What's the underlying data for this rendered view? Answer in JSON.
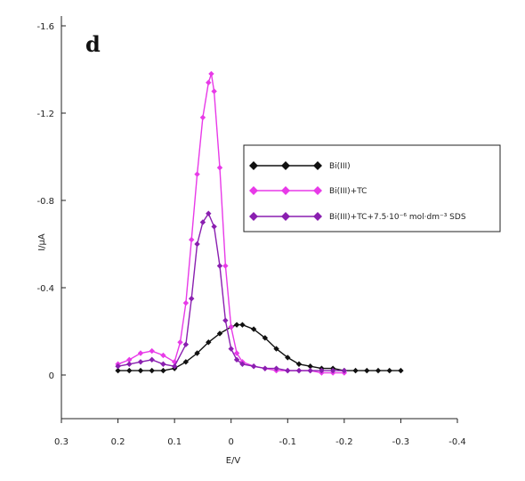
{
  "chart_data": {
    "type": "line",
    "panel_label": "d",
    "xlabel": "E/V",
    "ylabel": "I/μA",
    "x_ticks": [
      {
        "value": 0.3,
        "label": "0.3"
      },
      {
        "value": 0.2,
        "label": "0.2"
      },
      {
        "value": 0.1,
        "label": "0.1"
      },
      {
        "value": 0.0,
        "label": "0"
      },
      {
        "value": -0.1,
        "label": "-0.1"
      },
      {
        "value": -0.2,
        "label": "-0.2"
      },
      {
        "value": -0.3,
        "label": "-0.3"
      },
      {
        "value": -0.4,
        "label": "-0.4"
      }
    ],
    "y_ticks": [
      {
        "value": 0.0,
        "label": "0"
      },
      {
        "value": -0.4,
        "label": "-0.4"
      },
      {
        "value": -0.8,
        "label": "-0.8"
      },
      {
        "value": -1.2,
        "label": "-1.2"
      },
      {
        "value": -1.6,
        "label": "-1.6"
      }
    ],
    "xlim": [
      0.3,
      -0.4
    ],
    "ylim": [
      0.2,
      -1.6
    ],
    "x_reversed": true,
    "y_reversed": true,
    "grid": false,
    "legend_position": "right",
    "series": [
      {
        "name": "Bi(III)",
        "color": "#111111",
        "marker": "diamond",
        "x": [
          0.2,
          0.18,
          0.16,
          0.14,
          0.12,
          0.1,
          0.08,
          0.06,
          0.04,
          0.02,
          0.0,
          -0.01,
          -0.02,
          -0.04,
          -0.06,
          -0.08,
          -0.1,
          -0.12,
          -0.14,
          -0.16,
          -0.18,
          -0.2,
          -0.22,
          -0.24,
          -0.26,
          -0.28,
          -0.3
        ],
        "y": [
          -0.02,
          -0.02,
          -0.02,
          -0.02,
          -0.02,
          -0.03,
          -0.06,
          -0.1,
          -0.15,
          -0.19,
          -0.22,
          -0.23,
          -0.23,
          -0.21,
          -0.17,
          -0.12,
          -0.08,
          -0.05,
          -0.04,
          -0.03,
          -0.03,
          -0.02,
          -0.02,
          -0.02,
          -0.02,
          -0.02,
          -0.02
        ]
      },
      {
        "name": "Bi(III)+TC",
        "color": "#e83ae8",
        "marker": "diamond",
        "x": [
          0.2,
          0.18,
          0.16,
          0.14,
          0.12,
          0.1,
          0.09,
          0.08,
          0.07,
          0.06,
          0.05,
          0.04,
          0.035,
          0.03,
          0.02,
          0.01,
          0.0,
          -0.01,
          -0.02,
          -0.04,
          -0.06,
          -0.08,
          -0.1,
          -0.12,
          -0.14,
          -0.16,
          -0.18,
          -0.2
        ],
        "y": [
          -0.05,
          -0.07,
          -0.1,
          -0.11,
          -0.09,
          -0.06,
          -0.15,
          -0.33,
          -0.62,
          -0.92,
          -1.18,
          -1.34,
          -1.38,
          -1.3,
          -0.95,
          -0.5,
          -0.22,
          -0.1,
          -0.06,
          -0.04,
          -0.03,
          -0.02,
          -0.02,
          -0.02,
          -0.02,
          -0.01,
          -0.01,
          -0.01
        ]
      },
      {
        "name": "Bi(III)+TC+7.5·10⁻⁶ mol·dm⁻³ SDS",
        "color": "#8a1fb0",
        "marker": "diamond",
        "x": [
          0.2,
          0.18,
          0.16,
          0.14,
          0.12,
          0.1,
          0.08,
          0.07,
          0.06,
          0.05,
          0.04,
          0.03,
          0.02,
          0.01,
          0.0,
          -0.01,
          -0.02,
          -0.04,
          -0.06,
          -0.08,
          -0.1,
          -0.12,
          -0.14,
          -0.16,
          -0.18,
          -0.2
        ],
        "y": [
          -0.04,
          -0.05,
          -0.06,
          -0.07,
          -0.05,
          -0.04,
          -0.14,
          -0.35,
          -0.6,
          -0.7,
          -0.74,
          -0.68,
          -0.5,
          -0.25,
          -0.12,
          -0.07,
          -0.05,
          -0.04,
          -0.03,
          -0.03,
          -0.02,
          -0.02,
          -0.02,
          -0.02,
          -0.02,
          -0.02
        ]
      }
    ]
  }
}
